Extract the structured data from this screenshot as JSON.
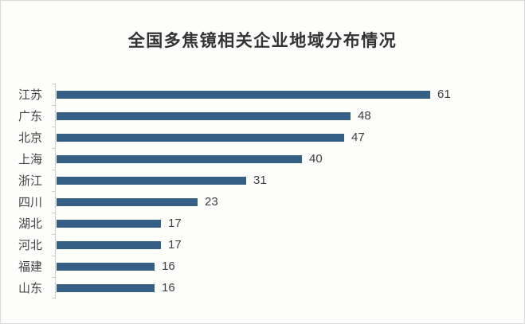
{
  "chart_data": {
    "type": "bar",
    "orientation": "horizontal",
    "title": "全国多焦镜相关企业地域分布情况",
    "categories": [
      "江苏",
      "广东",
      "北京",
      "上海",
      "浙江",
      "四川",
      "湖北",
      "河北",
      "福建",
      "山东"
    ],
    "values": [
      61,
      48,
      47,
      40,
      31,
      23,
      17,
      17,
      16,
      16
    ],
    "xlabel": "",
    "ylabel": "",
    "xlim": [
      0,
      61
    ],
    "grid": false,
    "legend": "none",
    "value_labels": "end-of-bar",
    "sort_order": "descending",
    "colors": {
      "bar": "#365f86",
      "title_text": "#333333",
      "category_text": "#454545",
      "value_text": "#3f3f3f",
      "axis_line": "#cfcfcf",
      "canvas_border": "#d9d9d9",
      "background": "#fdfdfc"
    }
  }
}
